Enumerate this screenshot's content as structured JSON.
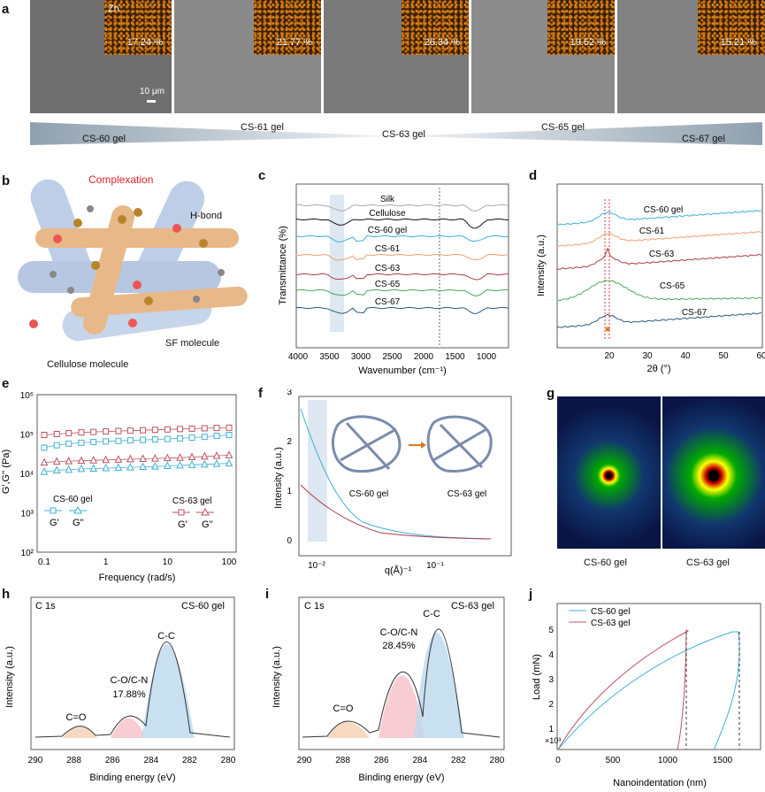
{
  "panel_a": {
    "letter": "a",
    "images": [
      {
        "element": "",
        "pct": "17.24 %"
      },
      {
        "element": "",
        "pct": "21.77 %"
      },
      {
        "element": "",
        "pct": "26.34 %"
      },
      {
        "element": "",
        "pct": "19.52 %"
      },
      {
        "element": "",
        "pct": "15.21 %"
      }
    ],
    "element_label": "Zn",
    "scale_bar": "10 μm",
    "gel_labels": [
      "CS-60 gel",
      "CS-61 gel",
      "CS-63 gel",
      "CS-65 gel",
      "CS-67 gel"
    ]
  },
  "panel_b": {
    "letter": "b",
    "complexation": "Complexation",
    "hbond": "H-bond",
    "sf": "SF molecule",
    "cellulose": "Cellulose molecule"
  },
  "panel_c": {
    "letter": "c",
    "ylabel": "Transmittance (%)",
    "xlabel": "Wavenumber (cm⁻¹)",
    "xticks": [
      "4000",
      "3500",
      "3000",
      "2500",
      "2000",
      "1500",
      "1000"
    ],
    "series": [
      "Silk",
      "Cellulose",
      "CS-60 gel",
      "CS-61",
      "CS-63",
      "CS-65",
      "CS-67"
    ],
    "colors": [
      "#aaaaaa",
      "#111111",
      "#3fb0d6",
      "#f0a070",
      "#b03a4a",
      "#4aa860",
      "#2a5a7a"
    ]
  },
  "panel_d": {
    "letter": "d",
    "ylabel": "Intensity (a.u.)",
    "xlabel": "2θ (°)",
    "xticks": [
      "20",
      "30",
      "40",
      "50",
      "60"
    ],
    "series": [
      "CS-60 gel",
      "CS-61",
      "CS-63",
      "CS-65",
      "CS-67"
    ],
    "colors": [
      "#3fb0d6",
      "#f0a070",
      "#b03a4a",
      "#4aa860",
      "#2a5a7a"
    ]
  },
  "panel_e": {
    "letter": "e",
    "ylabel": "G',G'' (Pa)",
    "xlabel": "Frequency (rad/s)",
    "xticks": [
      "0.1",
      "1",
      "10",
      "100"
    ],
    "yticks": [
      "10²",
      "10³",
      "10⁴",
      "10⁵",
      "10⁶"
    ],
    "legend_left_title": "CS-60 gel",
    "legend_right_title": "CS-63 gel",
    "g1": "G'",
    "g2": "G''",
    "chart_data": {
      "type": "scatter",
      "x_log": true,
      "y_log": true,
      "x": [
        0.1,
        0.16,
        0.25,
        0.4,
        0.63,
        1,
        1.6,
        2.5,
        4,
        6.3,
        10,
        16,
        25,
        40,
        63,
        100
      ],
      "series": [
        {
          "name": "CS-60 gel G'",
          "values": [
            45000,
            52000,
            57000,
            60000,
            63000,
            65000,
            67000,
            69000,
            71000,
            73000,
            75000,
            78000,
            81000,
            85000,
            90000,
            95000
          ]
        },
        {
          "name": "CS-60 gel G''",
          "values": [
            11000,
            12000,
            12500,
            13000,
            13300,
            13600,
            14000,
            14300,
            14700,
            15000,
            15500,
            16000,
            16500,
            17000,
            17500,
            18000
          ]
        },
        {
          "name": "CS-63 gel G'",
          "values": [
            95000,
            100000,
            105000,
            110000,
            113000,
            116000,
            119000,
            122000,
            125000,
            128000,
            131000,
            134000,
            137000,
            140000,
            143000,
            145000
          ]
        },
        {
          "name": "CS-63 gel G''",
          "values": [
            19000,
            20000,
            20500,
            21000,
            21500,
            22000,
            22500,
            23000,
            23500,
            24000,
            24500,
            25000,
            26000,
            27000,
            28000,
            29000
          ]
        }
      ],
      "colors": [
        "#3fb0d6",
        "#3fb0d6",
        "#c05060",
        "#c05060"
      ]
    }
  },
  "panel_f": {
    "letter": "f",
    "ylabel": "Intensity (a.u.)",
    "xlabel": "q(Å)⁻¹",
    "yticks": [
      "0",
      "1",
      "2",
      "3"
    ],
    "xticks": [
      "10⁻²",
      "10⁻¹"
    ],
    "label_a": "CS-60 gel",
    "label_b": "CS-63 gel"
  },
  "panel_g": {
    "letter": "g",
    "label_a": "CS-60 gel",
    "label_b": "CS-63 gel"
  },
  "panel_h": {
    "letter": "h",
    "core": "C 1s",
    "sample": "CS-60 gel",
    "peak1": "C-C",
    "peak2": "C-O/C-N",
    "peak2_pct": "17.88%",
    "peak3": "C=O",
    "ylabel": "Intensity (a.u.)",
    "xlabel": "Binding energy (eV)",
    "xticks": [
      "290",
      "288",
      "286",
      "284",
      "282",
      "280"
    ]
  },
  "panel_i": {
    "letter": "i",
    "core": "C 1s",
    "sample": "CS-63 gel",
    "peak1": "C-C",
    "peak2": "C-O/C-N",
    "peak2_pct": "28.45%",
    "peak3": "C=O",
    "ylabel": "Intensity (a.u.)",
    "xlabel": "Binding energy (eV)",
    "xticks": [
      "290",
      "288",
      "286",
      "284",
      "282",
      "280"
    ]
  },
  "panel_j": {
    "letter": "j",
    "legend": [
      "CS-60 gel",
      "CS-63 gel"
    ],
    "ylabel": "Load (mN)",
    "xlabel": "Nanoindentation (nm)",
    "xticks": [
      "0",
      "500",
      "1000",
      "1500"
    ],
    "yticks": [
      "1",
      "2",
      "3",
      "4",
      "5"
    ],
    "ymult": "×10³"
  }
}
